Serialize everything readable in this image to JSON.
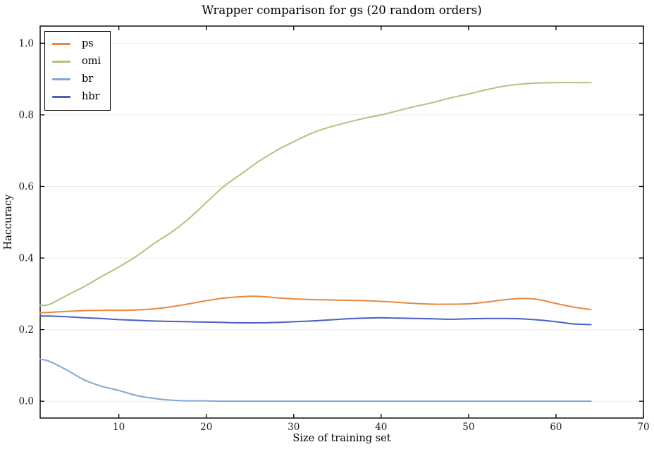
{
  "chart_data": {
    "type": "line",
    "title": "Wrapper comparison for gs (20 random orders)",
    "xlabel": "Size of training set",
    "ylabel": "Haccuracy",
    "xlim": [
      1,
      70
    ],
    "ylim": [
      -0.047,
      1.048
    ],
    "grid": "horizontal-only",
    "legend_position": "upper left",
    "x_ticks": [
      10,
      20,
      30,
      40,
      50,
      60,
      70
    ],
    "y_ticks": [
      0.0,
      0.2,
      0.4,
      0.6,
      0.8,
      1.0
    ],
    "y_tick_labels": [
      "0.0",
      "0.2",
      "0.4",
      "0.6",
      "0.8",
      "1.0"
    ],
    "x": [
      1,
      2,
      4,
      6,
      8,
      10,
      12,
      14,
      16,
      18,
      20,
      22,
      24,
      26,
      28,
      30,
      32,
      34,
      36,
      38,
      40,
      42,
      44,
      46,
      48,
      50,
      52,
      54,
      56,
      58,
      60,
      62,
      64
    ],
    "series": [
      {
        "name": "ps",
        "color": "#eb873c",
        "values": [
          0.247,
          0.248,
          0.251,
          0.253,
          0.254,
          0.254,
          0.255,
          0.258,
          0.264,
          0.272,
          0.281,
          0.288,
          0.292,
          0.293,
          0.289,
          0.286,
          0.284,
          0.283,
          0.282,
          0.281,
          0.279,
          0.276,
          0.273,
          0.271,
          0.271,
          0.272,
          0.277,
          0.283,
          0.287,
          0.284,
          0.273,
          0.263,
          0.256
        ]
      },
      {
        "name": "omi",
        "color": "#b3c180",
        "values": [
          0.268,
          0.27,
          0.295,
          0.32,
          0.348,
          0.375,
          0.405,
          0.44,
          0.472,
          0.51,
          0.555,
          0.6,
          0.635,
          0.67,
          0.7,
          0.725,
          0.748,
          0.765,
          0.778,
          0.79,
          0.8,
          0.812,
          0.824,
          0.835,
          0.848,
          0.858,
          0.87,
          0.88,
          0.886,
          0.889,
          0.89,
          0.89,
          0.89
        ]
      },
      {
        "name": "br",
        "color": "#7fa8d7",
        "values": [
          0.117,
          0.112,
          0.088,
          0.06,
          0.042,
          0.03,
          0.016,
          0.008,
          0.003,
          0.001,
          0.001,
          0.0,
          0.0,
          0.0,
          0.0,
          0.0,
          0.0,
          0.0,
          0.0,
          0.0,
          0.0,
          0.0,
          0.0,
          0.0,
          0.0,
          0.0,
          0.0,
          0.0,
          0.0,
          0.0,
          0.0,
          0.0,
          0.0
        ]
      },
      {
        "name": "hbr",
        "color": "#4a5ec4",
        "values": [
          0.238,
          0.238,
          0.236,
          0.233,
          0.231,
          0.228,
          0.226,
          0.224,
          0.223,
          0.222,
          0.221,
          0.22,
          0.219,
          0.219,
          0.22,
          0.222,
          0.224,
          0.227,
          0.23,
          0.232,
          0.233,
          0.232,
          0.231,
          0.23,
          0.229,
          0.23,
          0.231,
          0.231,
          0.23,
          0.227,
          0.222,
          0.216,
          0.214
        ]
      }
    ],
    "colors": {
      "background": "#ffffff",
      "grid": "#ebebeb",
      "spine": "#000000",
      "tick_text": "#1a1a1a"
    }
  }
}
